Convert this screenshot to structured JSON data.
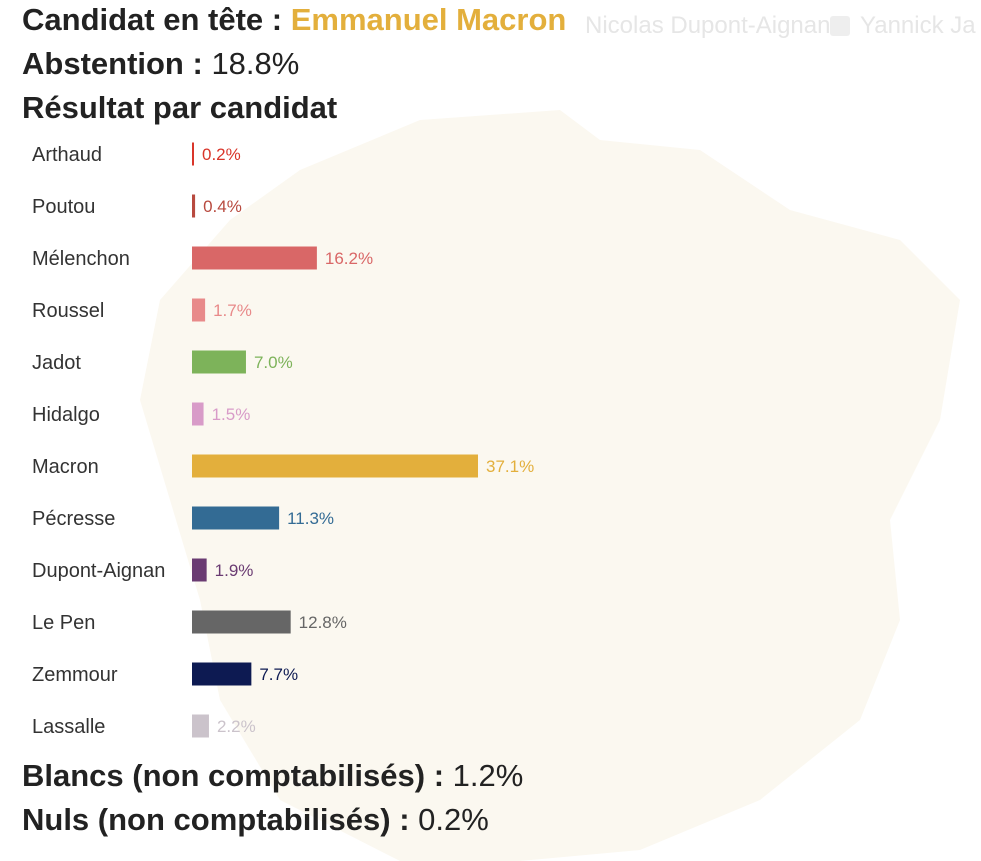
{
  "background": {
    "legend": [
      {
        "label": "Nicolas Dupont-Aignan"
      },
      {
        "label": "Yannick Ja"
      }
    ]
  },
  "header": {
    "leader_label": "Candidat en tête :",
    "leader_name": "Emmanuel Macron",
    "abstention_label": "Abstention :",
    "abstention_value": "18.8%",
    "results_title": "Résultat par candidat"
  },
  "footer": {
    "blancs_label": "Blancs (non comptabilisés) :",
    "blancs_value": "1.2%",
    "nuls_label": "Nuls (non comptabilisés) :",
    "nuls_value": "0.2%"
  },
  "colors": {
    "leader": "#e3af3c"
  },
  "chart_data": {
    "type": "bar",
    "orientation": "horizontal",
    "title": "Résultat par candidat",
    "categories": [
      "Arthaud",
      "Poutou",
      "Mélenchon",
      "Roussel",
      "Jadot",
      "Hidalgo",
      "Macron",
      "Pécresse",
      "Dupont-Aignan",
      "Le Pen",
      "Zemmour",
      "Lassalle"
    ],
    "values": [
      0.2,
      0.4,
      16.2,
      1.7,
      7.0,
      1.5,
      37.1,
      11.3,
      1.9,
      12.8,
      7.7,
      2.2
    ],
    "value_labels": [
      "0.2%",
      "0.4%",
      "16.2%",
      "1.7%",
      "7.0%",
      "1.5%",
      "37.1%",
      "11.3%",
      "1.9%",
      "12.8%",
      "7.7%",
      "2.2%"
    ],
    "colors": [
      "#d9352a",
      "#b84a3f",
      "#d96767",
      "#e88a8a",
      "#7db35a",
      "#d89bc8",
      "#e3af3c",
      "#336b94",
      "#6a3b72",
      "#666666",
      "#0d1a52",
      "#cbc3cb"
    ],
    "label_colors": [
      "#d9352a",
      "#b84a3f",
      "#d96767",
      "#e88a8a",
      "#7db35a",
      "#d89bc8",
      "#e3af3c",
      "#336b94",
      "#6a3b72",
      "#666666",
      "#0d1a52",
      "#cbc3cb"
    ],
    "xlim": [
      0,
      37.1
    ],
    "grid": false,
    "legend": "none"
  }
}
